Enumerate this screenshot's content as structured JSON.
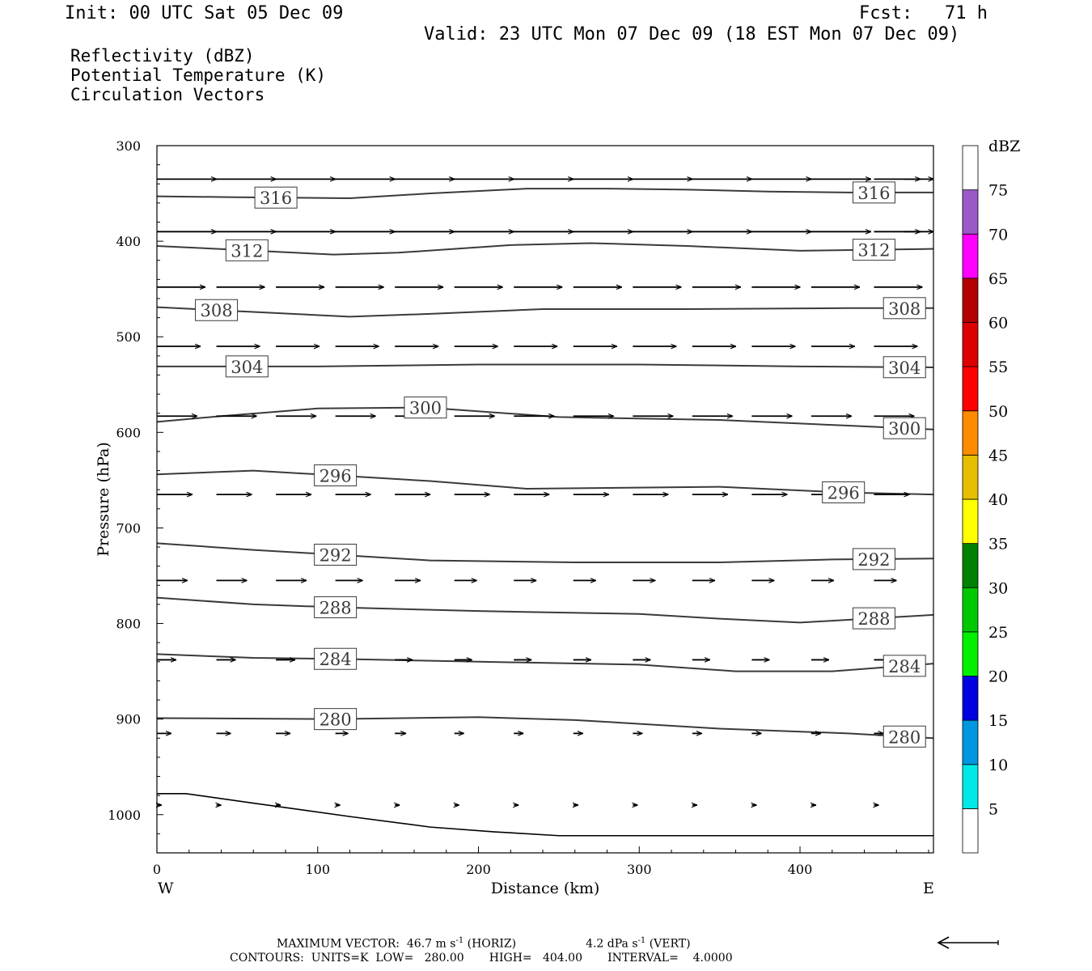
{
  "header": {
    "init": "Init: 00 UTC Sat 05 Dec 09",
    "fcst": "Fcst:   71 h",
    "valid": "Valid: 23 UTC Mon 07 Dec 09 (18 EST Mon 07 Dec 09)"
  },
  "legend_lines": [
    {
      "text": "Reflectivity (dBZ)",
      "color": "#000000"
    },
    {
      "text": "Potential Temperature (K)",
      "color": "#6e6e6e"
    },
    {
      "text": "Circulation Vectors",
      "color": "#000000"
    }
  ],
  "footer": {
    "max_vector_label": "MAXIMUM VECTOR:",
    "max_vector_horiz": "46.7 m s",
    "horiz_tag": "(HORIZ)",
    "max_vector_vert": "4.2 dPa s",
    "vert_tag": "(VERT)",
    "exponent": "-1",
    "contours": "CONTOURS:  UNITS=K  LOW=   280.00       HIGH=   404.00       INTERVAL=    4.0000"
  },
  "chart_data": {
    "type": "line",
    "xlabel": "Distance (km)",
    "ylabel": "Pressure (hPa)",
    "xlim": [
      0,
      483
    ],
    "ylim": [
      300,
      1040
    ],
    "x_ticks": [
      0,
      100,
      200,
      300,
      400
    ],
    "y_ticks": [
      300,
      400,
      500,
      600,
      700,
      800,
      900,
      1000
    ],
    "x_end_labels": {
      "left": "W",
      "right": "E"
    },
    "colorbar": {
      "title": "dBZ",
      "labels": [
        5,
        10,
        15,
        20,
        25,
        30,
        35,
        40,
        45,
        50,
        55,
        60,
        65,
        70,
        75
      ],
      "bins": [
        {
          "color": "#ffffff"
        },
        {
          "color": "#00e8e8"
        },
        {
          "color": "#0096e0"
        },
        {
          "color": "#0000e0"
        },
        {
          "color": "#00f000"
        },
        {
          "color": "#00c800"
        },
        {
          "color": "#008000"
        },
        {
          "color": "#ffff00"
        },
        {
          "color": "#e6be00"
        },
        {
          "color": "#ff8c00"
        },
        {
          "color": "#ff0000"
        },
        {
          "color": "#dc0000"
        },
        {
          "color": "#b40000"
        },
        {
          "color": "#ff00ff"
        },
        {
          "color": "#9b59c7"
        },
        {
          "color": "#ffffff"
        }
      ]
    },
    "isentropes": [
      {
        "value": "316",
        "labels": [
          {
            "x": 74
          },
          {
            "x": 446
          }
        ],
        "points": [
          [
            0,
            353
          ],
          [
            50,
            354
          ],
          [
            120,
            355
          ],
          [
            170,
            350
          ],
          [
            230,
            345
          ],
          [
            280,
            345
          ],
          [
            330,
            346
          ],
          [
            380,
            348
          ],
          [
            430,
            349
          ],
          [
            483,
            349
          ]
        ]
      },
      {
        "value": "312",
        "labels": [
          {
            "x": 56
          },
          {
            "x": 446
          }
        ],
        "points": [
          [
            0,
            405
          ],
          [
            50,
            409
          ],
          [
            110,
            414
          ],
          [
            150,
            412
          ],
          [
            220,
            404
          ],
          [
            270,
            402
          ],
          [
            330,
            405
          ],
          [
            400,
            410
          ],
          [
            483,
            408
          ]
        ]
      },
      {
        "value": "308",
        "labels": [
          {
            "x": 37
          },
          {
            "x": 465
          }
        ],
        "points": [
          [
            0,
            469
          ],
          [
            60,
            474
          ],
          [
            120,
            479
          ],
          [
            170,
            476
          ],
          [
            240,
            471
          ],
          [
            330,
            471
          ],
          [
            430,
            470
          ],
          [
            483,
            470
          ]
        ]
      },
      {
        "value": "304",
        "labels": [
          {
            "x": 56
          },
          {
            "x": 465
          }
        ],
        "points": [
          [
            0,
            531
          ],
          [
            100,
            531
          ],
          [
            200,
            529
          ],
          [
            300,
            529
          ],
          [
            400,
            531
          ],
          [
            483,
            532
          ]
        ]
      },
      {
        "value": "300",
        "labels": [
          {
            "x": 167
          },
          {
            "x": 465
          }
        ],
        "points": [
          [
            0,
            589
          ],
          [
            40,
            583
          ],
          [
            100,
            575
          ],
          [
            167,
            574
          ],
          [
            250,
            584
          ],
          [
            350,
            587
          ],
          [
            430,
            593
          ],
          [
            483,
            597
          ]
        ]
      },
      {
        "value": "296",
        "labels": [
          {
            "x": 111
          },
          {
            "x": 427
          }
        ],
        "points": [
          [
            0,
            644
          ],
          [
            60,
            640
          ],
          [
            111,
            645
          ],
          [
            170,
            651
          ],
          [
            230,
            659
          ],
          [
            350,
            657
          ],
          [
            430,
            663
          ],
          [
            483,
            665
          ]
        ]
      },
      {
        "value": "292",
        "labels": [
          {
            "x": 111
          },
          {
            "x": 446
          }
        ],
        "points": [
          [
            0,
            716
          ],
          [
            60,
            723
          ],
          [
            111,
            728
          ],
          [
            170,
            734
          ],
          [
            260,
            736
          ],
          [
            350,
            736
          ],
          [
            420,
            733
          ],
          [
            483,
            732
          ]
        ]
      },
      {
        "value": "288",
        "labels": [
          {
            "x": 111
          },
          {
            "x": 446
          }
        ],
        "points": [
          [
            0,
            773
          ],
          [
            60,
            780
          ],
          [
            111,
            783
          ],
          [
            200,
            787
          ],
          [
            300,
            790
          ],
          [
            350,
            795
          ],
          [
            400,
            799
          ],
          [
            483,
            791
          ]
        ]
      },
      {
        "value": "284",
        "labels": [
          {
            "x": 111
          },
          {
            "x": 465
          }
        ],
        "points": [
          [
            0,
            832
          ],
          [
            60,
            836
          ],
          [
            111,
            837
          ],
          [
            200,
            840
          ],
          [
            300,
            843
          ],
          [
            360,
            850
          ],
          [
            420,
            850
          ],
          [
            483,
            842
          ]
        ]
      },
      {
        "value": "280",
        "labels": [
          {
            "x": 111
          },
          {
            "x": 465
          }
        ],
        "points": [
          [
            0,
            899
          ],
          [
            111,
            900
          ],
          [
            200,
            898
          ],
          [
            260,
            901
          ],
          [
            350,
            910
          ],
          [
            430,
            915
          ],
          [
            483,
            920
          ]
        ]
      }
    ],
    "surface_line": {
      "points": [
        [
          0,
          978
        ],
        [
          18,
          978
        ],
        [
          60,
          988
        ],
        [
          120,
          1002
        ],
        [
          170,
          1013
        ],
        [
          210,
          1018
        ],
        [
          250,
          1022
        ],
        [
          350,
          1022
        ],
        [
          483,
          1022
        ]
      ]
    },
    "vector_rows": [
      {
        "p": 335,
        "x": [
          0,
          37,
          74,
          111,
          148,
          185,
          222,
          259,
          296,
          333,
          370,
          407,
          446,
          465
        ],
        "len": [
          74,
          74,
          74,
          74,
          74,
          74,
          74,
          74,
          74,
          74,
          74,
          74,
          74,
          20
        ]
      },
      {
        "p": 390,
        "x": [
          0,
          37,
          74,
          111,
          148,
          185,
          222,
          259,
          296,
          333,
          370,
          407,
          446,
          465
        ],
        "len": [
          74,
          74,
          74,
          74,
          74,
          74,
          74,
          74,
          74,
          74,
          74,
          74,
          74,
          20
        ]
      },
      {
        "p": 448,
        "x": [
          0,
          37,
          74,
          111,
          148,
          185,
          222,
          259,
          296,
          333,
          370,
          407,
          446
        ],
        "len": [
          60,
          60,
          60,
          60,
          60,
          60,
          60,
          60,
          60,
          60,
          60,
          60,
          60
        ]
      },
      {
        "p": 510,
        "x": [
          0,
          37,
          74,
          111,
          148,
          185,
          222,
          259,
          296,
          333,
          370,
          407,
          446
        ],
        "len": [
          54,
          54,
          54,
          54,
          54,
          54,
          54,
          54,
          54,
          54,
          54,
          54,
          54
        ]
      },
      {
        "p": 583,
        "x": [
          0,
          37,
          74,
          111,
          148,
          185,
          222,
          259,
          296,
          333,
          370,
          407,
          446
        ],
        "len": [
          50,
          50,
          50,
          50,
          50,
          50,
          50,
          50,
          50,
          50,
          50,
          50,
          50
        ]
      },
      {
        "p": 665,
        "x": [
          0,
          37,
          74,
          111,
          148,
          185,
          222,
          259,
          296,
          333,
          370,
          407,
          446
        ],
        "len": [
          44,
          44,
          44,
          44,
          44,
          44,
          44,
          44,
          44,
          44,
          44,
          44,
          44
        ]
      },
      {
        "p": 755,
        "x": [
          0,
          37,
          74,
          111,
          148,
          185,
          222,
          259,
          296,
          333,
          370,
          407,
          446
        ],
        "len": [
          38,
          38,
          38,
          34,
          32,
          28,
          28,
          28,
          28,
          28,
          28,
          28,
          28
        ]
      },
      {
        "p": 838,
        "x": [
          0,
          37,
          74,
          111,
          148,
          185,
          222,
          259,
          296,
          333,
          370,
          407,
          446
        ],
        "len": [
          24,
          24,
          24,
          22,
          22,
          22,
          22,
          22,
          22,
          22,
          22,
          22,
          22
        ]
      },
      {
        "p": 915,
        "x": [
          0,
          37,
          74,
          111,
          148,
          185,
          222,
          259,
          296,
          333,
          370,
          407,
          446
        ],
        "len": [
          18,
          18,
          18,
          16,
          14,
          12,
          12,
          12,
          12,
          12,
          12,
          12,
          12
        ]
      },
      {
        "p": 990,
        "x": [
          0,
          37,
          74,
          111,
          148,
          185,
          222,
          259,
          296,
          333,
          370,
          407,
          446
        ],
        "len": [
          6,
          6,
          6,
          6,
          6,
          6,
          6,
          6,
          6,
          6,
          6,
          6,
          6
        ]
      }
    ]
  }
}
